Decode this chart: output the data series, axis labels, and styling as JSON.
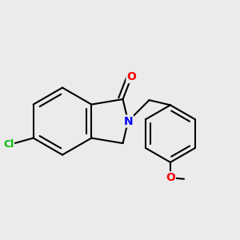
{
  "bg_color": "#ebebeb",
  "bond_color": "#000000",
  "bond_width": 1.5,
  "atom_colors": {
    "O": "#ff0000",
    "N": "#0000ff",
    "Cl": "#00bb00",
    "C": "#000000"
  },
  "font_size": 9,
  "fig_size": [
    3.0,
    3.0
  ],
  "dpi": 100
}
